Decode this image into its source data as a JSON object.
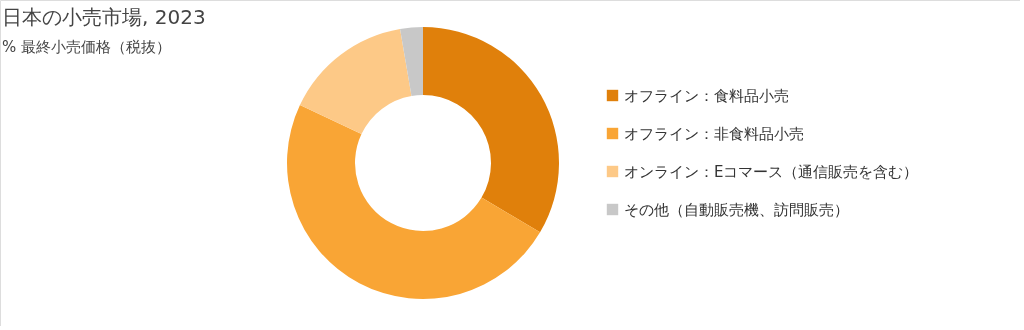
{
  "chart_data": {
    "type": "donut",
    "title": "日本の小売市場, 2023",
    "subtitle": "% 最終小売価格（税抜）",
    "categories": [
      "オフライン：食料品小売",
      "オフライン：非食料品小売",
      "オンライン：Eコマース（通信販売を含む）",
      "その他（自動販売機、訪問販売）"
    ],
    "values": [
      33.5,
      48.5,
      15.3,
      2.7
    ],
    "colors": [
      "#e0800b",
      "#f9a535",
      "#fdc987",
      "#c8c8c8"
    ],
    "legend": "right"
  }
}
